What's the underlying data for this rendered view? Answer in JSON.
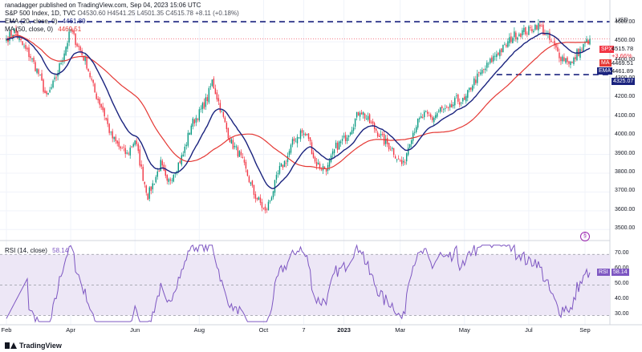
{
  "header": {
    "published": "ranadagger published on TradingView.com, Sep 04, 2023 15:06 UTC",
    "symbol": "S&P 500 Index, 1D, TVC",
    "ohlc": "O4530.60 H4541.25 L4501.35 C4515.78 +8.11 (+0.18%)"
  },
  "indicators": {
    "ema_label": "EMA (20, close, 0)",
    "ema_value": "4461.89",
    "ma_label": "MA (50, close, 0)",
    "ma_value": "4469.51",
    "rsi_label": "RSI (14, close)",
    "rsi_value": "58.14"
  },
  "currency": "USD",
  "price_tags": {
    "spx_label": "SPX",
    "spx_value": "4515.78",
    "spx_change": "+3.66%",
    "ma_label": "MA",
    "ma_value": "4469.51",
    "ema_label": "EMA",
    "ema_value": "4461.89",
    "level_value": "4325.07"
  },
  "colors": {
    "up": "#089981",
    "down": "#f23645",
    "ema": "#1a237e",
    "ma": "#e53935",
    "rsi": "#7e57c2",
    "rsi_band": "#ede7f6",
    "level": "#1a237e"
  },
  "brand": "TradingView",
  "chart_data": [
    {
      "type": "candlestick",
      "y_ticks": [
        3500,
        3600,
        3700,
        3800,
        3900,
        4000,
        4100,
        4200,
        4300,
        4400,
        4500,
        4600
      ],
      "ylim": [
        3450,
        4680
      ],
      "x_ticks": [
        "Feb",
        "Apr",
        "Jun",
        "Aug",
        "Oct",
        "7",
        "2023",
        "Mar",
        "May",
        "Jul",
        "Sep"
      ],
      "x_tick_index": [
        0,
        40,
        80,
        120,
        160,
        185,
        210,
        245,
        285,
        325,
        360
      ],
      "n_bars": 364,
      "horizontal_levels": [
        4325.07,
        4607
      ],
      "close_anchors": [
        [
          0,
          4515
        ],
        [
          5,
          4560
        ],
        [
          10,
          4480
        ],
        [
          15,
          4420
        ],
        [
          20,
          4330
        ],
        [
          25,
          4200
        ],
        [
          30,
          4290
        ],
        [
          35,
          4420
        ],
        [
          40,
          4560
        ],
        [
          45,
          4470
        ],
        [
          50,
          4380
        ],
        [
          55,
          4230
        ],
        [
          60,
          4140
        ],
        [
          65,
          4000
        ],
        [
          70,
          3940
        ],
        [
          75,
          3900
        ],
        [
          80,
          3980
        ],
        [
          85,
          3780
        ],
        [
          88,
          3680
        ],
        [
          92,
          3760
        ],
        [
          96,
          3850
        ],
        [
          100,
          3740
        ],
        [
          105,
          3820
        ],
        [
          110,
          3900
        ],
        [
          115,
          4060
        ],
        [
          120,
          4120
        ],
        [
          125,
          4200
        ],
        [
          128,
          4290
        ],
        [
          132,
          4180
        ],
        [
          136,
          4060
        ],
        [
          140,
          3960
        ],
        [
          145,
          3900
        ],
        [
          150,
          3790
        ],
        [
          154,
          3690
        ],
        [
          158,
          3640
        ],
        [
          161,
          3590
        ],
        [
          164,
          3660
        ],
        [
          167,
          3740
        ],
        [
          170,
          3820
        ],
        [
          174,
          3870
        ],
        [
          178,
          3960
        ],
        [
          183,
          4020
        ],
        [
          188,
          3990
        ],
        [
          192,
          3860
        ],
        [
          196,
          3830
        ],
        [
          200,
          3830
        ],
        [
          205,
          3940
        ],
        [
          210,
          3980
        ],
        [
          215,
          4050
        ],
        [
          220,
          4140
        ],
        [
          225,
          4080
        ],
        [
          230,
          4030
        ],
        [
          235,
          3970
        ],
        [
          240,
          3930
        ],
        [
          244,
          3870
        ],
        [
          247,
          3840
        ],
        [
          251,
          3980
        ],
        [
          255,
          4060
        ],
        [
          260,
          4110
        ],
        [
          265,
          4090
        ],
        [
          270,
          4140
        ],
        [
          275,
          4130
        ],
        [
          280,
          4190
        ],
        [
          285,
          4180
        ],
        [
          290,
          4280
        ],
        [
          295,
          4330
        ],
        [
          300,
          4380
        ],
        [
          305,
          4440
        ],
        [
          310,
          4470
        ],
        [
          315,
          4530
        ],
        [
          320,
          4550
        ],
        [
          325,
          4560
        ],
        [
          330,
          4590
        ],
        [
          333,
          4570
        ],
        [
          337,
          4520
        ],
        [
          341,
          4470
        ],
        [
          345,
          4420
        ],
        [
          349,
          4405
        ],
        [
          352,
          4380
        ],
        [
          355,
          4440
        ],
        [
          358,
          4460
        ],
        [
          361,
          4500
        ],
        [
          363,
          4515.78
        ]
      ]
    },
    {
      "type": "line",
      "name": "RSI (14, close)",
      "y_ticks": [
        30.0,
        40.0,
        50.0,
        60.0,
        70.0
      ],
      "ylim": [
        25,
        78
      ],
      "band": [
        30,
        70
      ],
      "last_value": 58.14
    }
  ]
}
